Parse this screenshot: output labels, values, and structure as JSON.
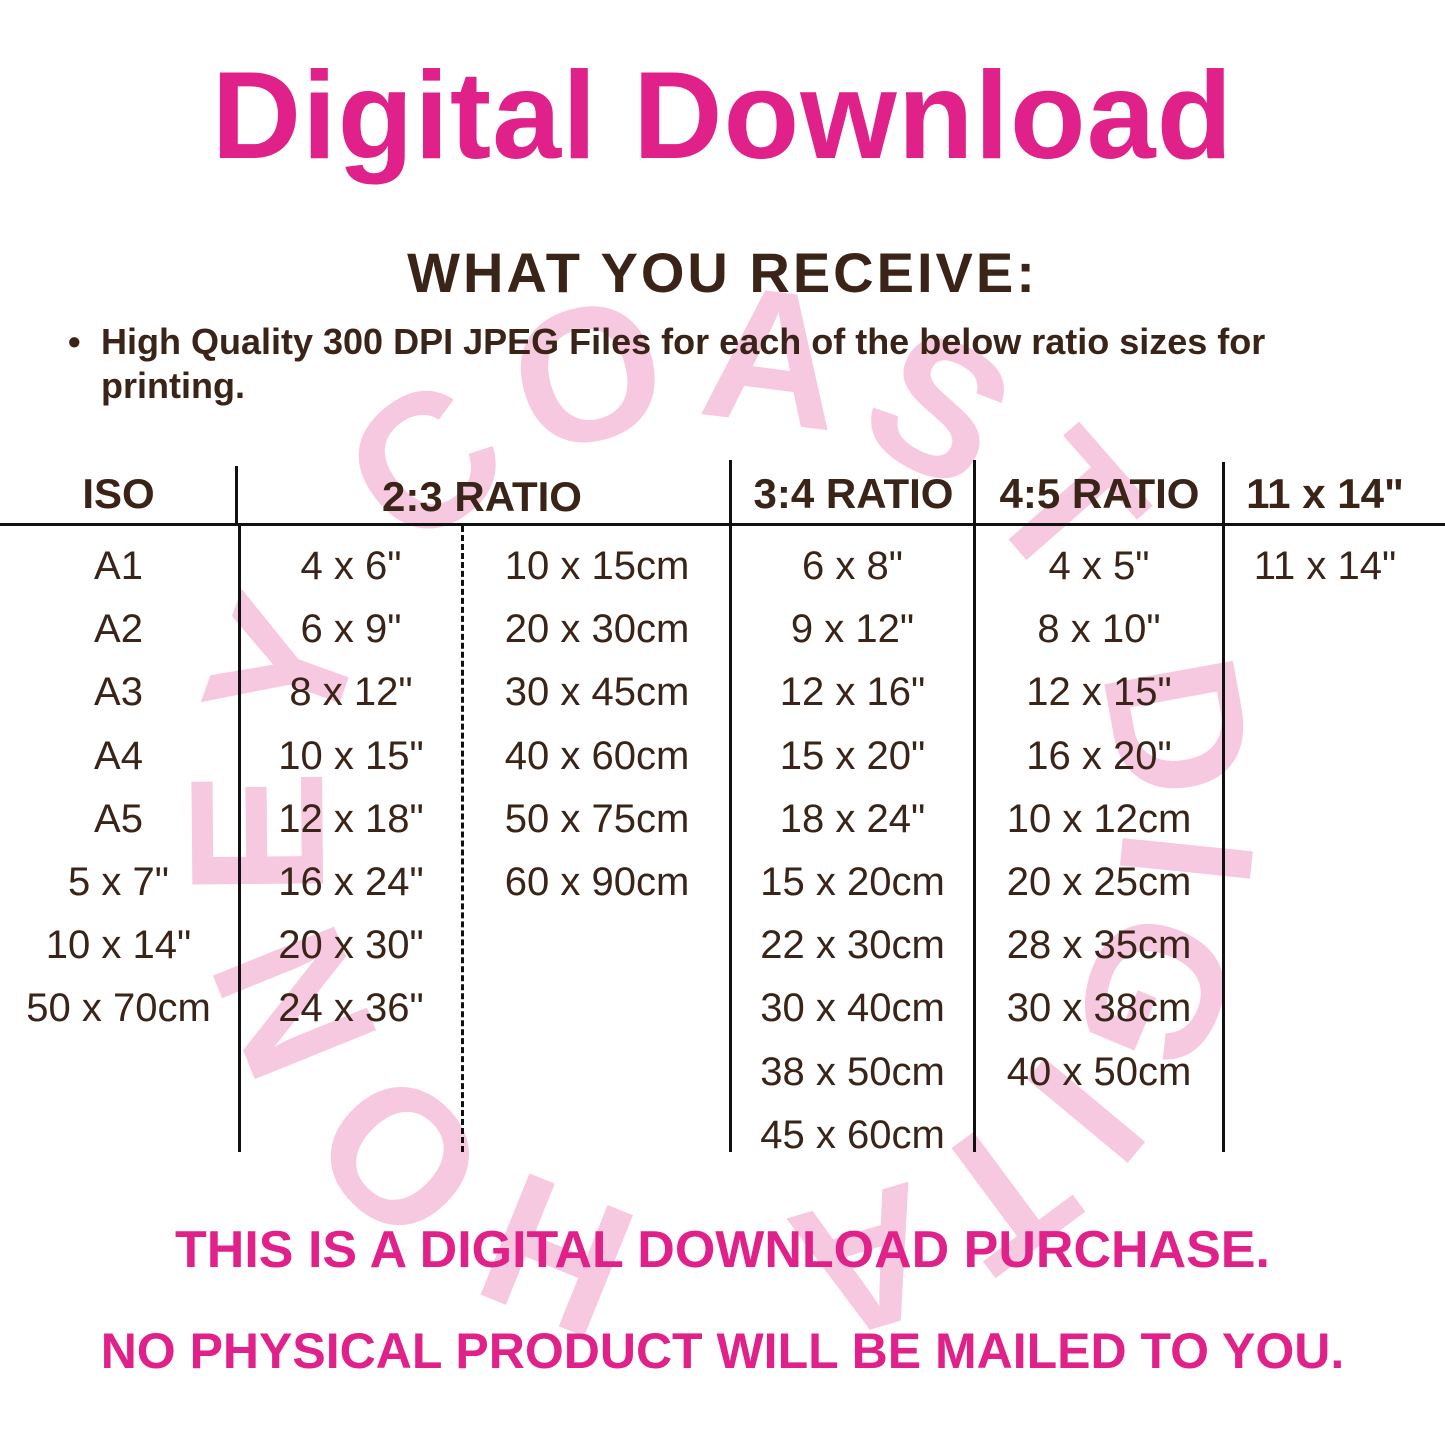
{
  "title": "Digital Download",
  "subtitle": "WHAT YOU RECEIVE:",
  "bullet": "High Quality 300 DPI JPEG Files for each of the below ratio sizes for printing.",
  "watermark": "HONEY COAST DIGITAL",
  "colors": {
    "accent": "#E0218A",
    "text": "#3A2418",
    "watermark": "#F7C9E1"
  },
  "headers": {
    "iso": "ISO",
    "r23": "2:3 RATIO",
    "r34": "3:4 RATIO",
    "r45": "4:5 RATIO",
    "r1114": "11 x 14\""
  },
  "columns": {
    "iso": [
      "A1",
      "A2",
      "A3",
      "A4",
      "A5",
      "5 x 7\"",
      "10 x 14\"",
      "50 x 70cm"
    ],
    "r23_in": [
      "4 x 6\"",
      "6 x 9\"",
      "8 x 12\"",
      "10 x 15\"",
      "12 x 18\"",
      "16 x 24\"",
      "20 x 30\"",
      "24 x 36\""
    ],
    "r23_cm": [
      "10 x 15cm",
      "20 x 30cm",
      "30 x 45cm",
      "40 x 60cm",
      "50 x 75cm",
      "60 x 90cm"
    ],
    "r34": [
      "6 x 8\"",
      "9 x 12\"",
      "12 x 16\"",
      "15 x 20\"",
      "18 x 24\"",
      "15 x 20cm",
      "22 x 30cm",
      "30 x 40cm",
      "38 x 50cm",
      "45 x 60cm"
    ],
    "r45": [
      "4 x 5\"",
      "8 x 10\"",
      "12 x 15\"",
      "16 x 20\"",
      "10 x 12cm",
      "20 x 25cm",
      "28 x 35cm",
      "30 x 38cm",
      "40 x 50cm"
    ],
    "r1114": [
      "11 x 14\""
    ]
  },
  "footer": {
    "line1": "THIS IS A DIGITAL DOWNLOAD PURCHASE.",
    "line2": "NO PHYSICAL PRODUCT WILL BE MAILED TO YOU."
  }
}
